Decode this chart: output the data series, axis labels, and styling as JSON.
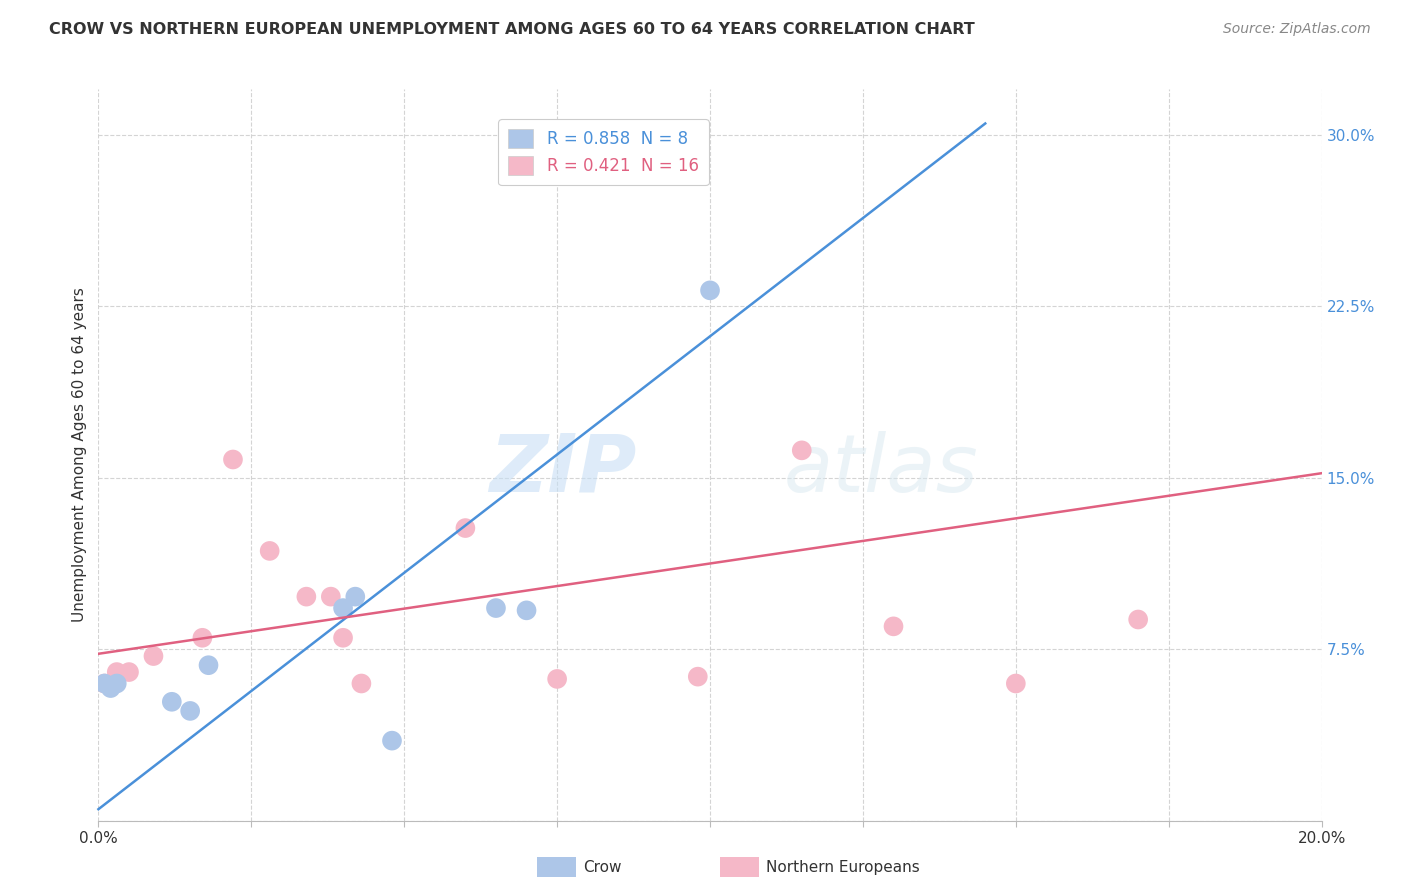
{
  "title": "CROW VS NORTHERN EUROPEAN UNEMPLOYMENT AMONG AGES 60 TO 64 YEARS CORRELATION CHART",
  "source": "Source: ZipAtlas.com",
  "ylabel": "Unemployment Among Ages 60 to 64 years",
  "xlim": [
    0.0,
    0.2
  ],
  "ylim": [
    0.0,
    0.32
  ],
  "xticks": [
    0.0,
    0.025,
    0.05,
    0.075,
    0.1,
    0.125,
    0.15,
    0.175,
    0.2
  ],
  "yticks": [
    0.0,
    0.075,
    0.15,
    0.225,
    0.3
  ],
  "ytick_labels": [
    "",
    "7.5%",
    "15.0%",
    "22.5%",
    "30.0%"
  ],
  "xtick_labels": [
    "0.0%",
    "",
    "",
    "",
    "",
    "",
    "",
    "",
    "20.0%"
  ],
  "crow_points": [
    [
      0.001,
      0.06
    ],
    [
      0.002,
      0.058
    ],
    [
      0.003,
      0.06
    ],
    [
      0.012,
      0.052
    ],
    [
      0.015,
      0.048
    ],
    [
      0.018,
      0.068
    ],
    [
      0.04,
      0.093
    ],
    [
      0.042,
      0.098
    ],
    [
      0.048,
      0.035
    ],
    [
      0.065,
      0.093
    ],
    [
      0.07,
      0.092
    ],
    [
      0.1,
      0.232
    ]
  ],
  "ne_points": [
    [
      0.001,
      0.06
    ],
    [
      0.002,
      0.06
    ],
    [
      0.003,
      0.065
    ],
    [
      0.005,
      0.065
    ],
    [
      0.009,
      0.072
    ],
    [
      0.017,
      0.08
    ],
    [
      0.022,
      0.158
    ],
    [
      0.028,
      0.118
    ],
    [
      0.034,
      0.098
    ],
    [
      0.038,
      0.098
    ],
    [
      0.04,
      0.08
    ],
    [
      0.043,
      0.06
    ],
    [
      0.06,
      0.128
    ],
    [
      0.075,
      0.062
    ],
    [
      0.098,
      0.063
    ],
    [
      0.115,
      0.162
    ],
    [
      0.13,
      0.085
    ],
    [
      0.15,
      0.06
    ],
    [
      0.17,
      0.088
    ]
  ],
  "crow_R": 0.858,
  "crow_N": 8,
  "ne_R": 0.421,
  "ne_N": 16,
  "crow_color": "#adc6e8",
  "crow_line_color": "#4a90d9",
  "ne_color": "#f5b8c8",
  "ne_line_color": "#e06080",
  "crow_line_x": [
    0.0,
    0.145
  ],
  "crow_line_y": [
    0.005,
    0.305
  ],
  "ne_line_x": [
    0.0,
    0.2
  ],
  "ne_line_y": [
    0.073,
    0.152
  ],
  "watermark_zip": "ZIP",
  "watermark_atlas": "atlas",
  "background_color": "#ffffff",
  "grid_color": "#d0d0d0",
  "title_color": "#333333",
  "source_color": "#888888",
  "yaxis_tick_color": "#4a90d9"
}
